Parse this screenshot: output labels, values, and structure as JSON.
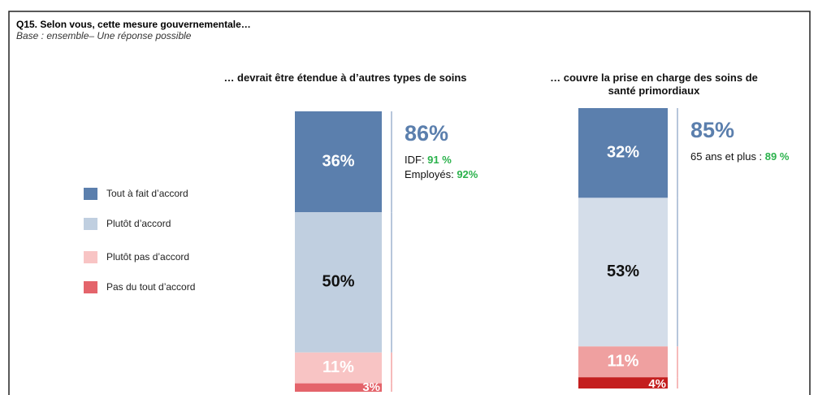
{
  "header": {
    "title": "Q15. Selon vous, cette mesure gouvernementale…",
    "subtitle": "Base : ensemble– Une réponse possible"
  },
  "chart_data": [
    {
      "type": "stacked_bar",
      "title": "… devrait être étendue à d’autres types de soins",
      "ylim": [
        0,
        100
      ],
      "series": [
        {
          "name": "Tout à fait d’accord",
          "color": "#5b7fad",
          "values": [
            36
          ],
          "value_labels": [
            "36%"
          ]
        },
        {
          "name": "Plutôt d’accord",
          "color": "#c0cfe0",
          "values": [
            50
          ],
          "value_labels": [
            "50%"
          ]
        },
        {
          "name": "Plutôt pas d’accord",
          "color": "#f8c4c4",
          "values": [
            11
          ],
          "value_labels": [
            "11%"
          ]
        },
        {
          "name": "Pas du tout d’accord",
          "color": "#e4646b",
          "values": [
            3
          ],
          "value_labels": [
            "3%"
          ]
        }
      ],
      "highlight": {
        "value": 86,
        "label": "86%"
      },
      "notes": [
        {
          "label": "IDF: ",
          "value": "91 %"
        },
        {
          "label": "Employés: ",
          "value": "92%"
        }
      ]
    },
    {
      "type": "stacked_bar",
      "title": "… couvre la prise en charge des soins de\nsanté primordiaux",
      "ylim": [
        0,
        100
      ],
      "series": [
        {
          "name": "Tout à fait d’accord",
          "color": "#5b7fad",
          "values": [
            32
          ],
          "value_labels": [
            "32%"
          ]
        },
        {
          "name": "Plutôt d’accord",
          "color": "#d4dde9",
          "values": [
            53
          ],
          "value_labels": [
            "53%"
          ]
        },
        {
          "name": "Plutôt pas d’accord",
          "color": "#efa0a0",
          "values": [
            11
          ],
          "value_labels": [
            "11%"
          ]
        },
        {
          "name": "Pas du tout d’accord",
          "color": "#c41e1e",
          "values": [
            4
          ],
          "value_labels": [
            "4%"
          ]
        }
      ],
      "highlight": {
        "value": 85,
        "label": "85%"
      },
      "notes": [
        {
          "label": "65 ans et plus : ",
          "value": "89 %"
        }
      ]
    }
  ]
}
